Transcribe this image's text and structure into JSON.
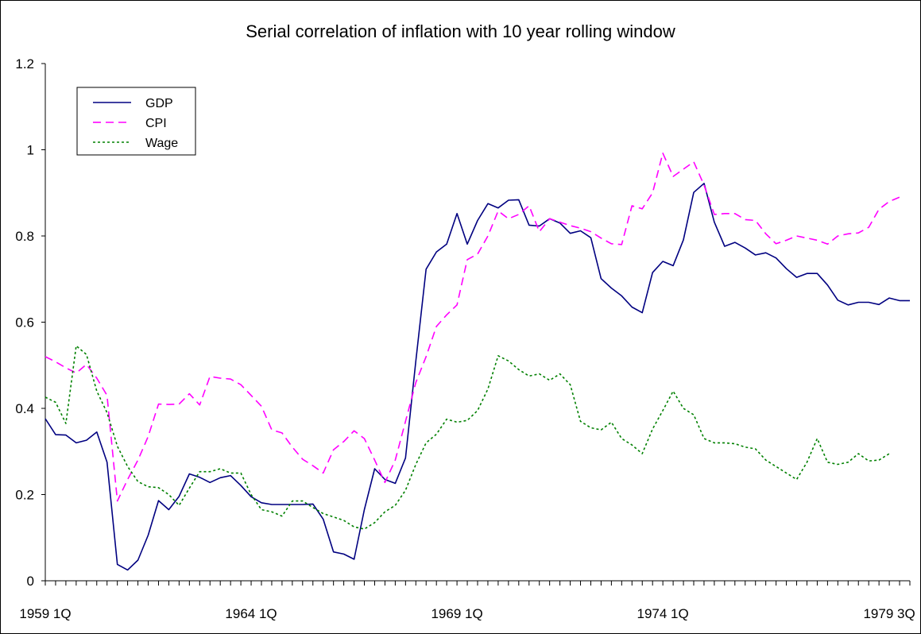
{
  "chart_data": {
    "type": "line",
    "title": "Serial correlation of inflation with 10 year rolling window",
    "xlabel": "",
    "ylabel": "",
    "ylim": [
      0,
      1.2
    ],
    "yticks": [
      "0",
      "0.2",
      "0.4",
      "0.6",
      "0.8",
      "1",
      "1.2"
    ],
    "xtick_labels": [
      "1959 1Q",
      "1964 1Q",
      "1969 1Q",
      "1974 1Q",
      "1979 3Q"
    ],
    "xtick_positions": [
      0,
      20,
      40,
      60,
      82
    ],
    "grid": false,
    "legend_position": "top-left",
    "series": [
      {
        "name": "GDP",
        "color": "#000080",
        "dash": "solid",
        "values": [
          0.376,
          0.339,
          0.338,
          0.32,
          0.326,
          0.345,
          0.275,
          0.038,
          0.025,
          0.048,
          0.106,
          0.186,
          0.165,
          0.196,
          0.248,
          0.24,
          0.228,
          0.239,
          0.244,
          0.221,
          0.195,
          0.181,
          0.177,
          0.177,
          0.177,
          0.177,
          0.178,
          0.143,
          0.067,
          0.062,
          0.05,
          0.165,
          0.26,
          0.235,
          0.226,
          0.285,
          0.51,
          0.723,
          0.763,
          0.781,
          0.852,
          0.781,
          0.836,
          0.875,
          0.865,
          0.883,
          0.884,
          0.825,
          0.823,
          0.84,
          0.83,
          0.806,
          0.812,
          0.796,
          0.701,
          0.679,
          0.661,
          0.635,
          0.622,
          0.715,
          0.741,
          0.731,
          0.791,
          0.901,
          0.922,
          0.832,
          0.776,
          0.785,
          0.772,
          0.756,
          0.761,
          0.749,
          0.724,
          0.704,
          0.713,
          0.713,
          0.686,
          0.651,
          0.64,
          0.646,
          0.646,
          0.641,
          0.656,
          0.65,
          0.65
        ]
      },
      {
        "name": "CPI",
        "color": "#ff00ff",
        "dash": "dashed",
        "values": [
          0.52,
          0.508,
          0.494,
          0.482,
          0.502,
          0.47,
          0.43,
          0.185,
          0.235,
          0.28,
          0.335,
          0.41,
          0.409,
          0.41,
          0.434,
          0.408,
          0.474,
          0.47,
          0.468,
          0.455,
          0.43,
          0.405,
          0.35,
          0.343,
          0.31,
          0.282,
          0.267,
          0.25,
          0.304,
          0.323,
          0.348,
          0.33,
          0.28,
          0.228,
          0.28,
          0.37,
          0.46,
          0.52,
          0.59,
          0.617,
          0.64,
          0.745,
          0.758,
          0.8,
          0.858,
          0.84,
          0.85,
          0.87,
          0.81,
          0.84,
          0.832,
          0.824,
          0.818,
          0.81,
          0.795,
          0.782,
          0.78,
          0.87,
          0.863,
          0.9,
          0.992,
          0.938,
          0.955,
          0.972,
          0.918,
          0.85,
          0.852,
          0.852,
          0.838,
          0.836,
          0.805,
          0.782,
          0.79,
          0.8,
          0.795,
          0.79,
          0.781,
          0.8,
          0.805,
          0.807,
          0.82,
          0.862,
          0.88,
          0.89
        ]
      },
      {
        "name": "Wage",
        "color": "#008000",
        "dash": "dotted",
        "values": [
          0.426,
          0.414,
          0.365,
          0.545,
          0.525,
          0.44,
          0.39,
          0.312,
          0.265,
          0.23,
          0.218,
          0.216,
          0.2,
          0.175,
          0.215,
          0.253,
          0.253,
          0.26,
          0.25,
          0.25,
          0.2,
          0.165,
          0.16,
          0.15,
          0.185,
          0.185,
          0.17,
          0.156,
          0.148,
          0.14,
          0.125,
          0.12,
          0.135,
          0.16,
          0.175,
          0.21,
          0.27,
          0.32,
          0.34,
          0.375,
          0.368,
          0.372,
          0.395,
          0.445,
          0.522,
          0.51,
          0.49,
          0.475,
          0.48,
          0.465,
          0.48,
          0.455,
          0.37,
          0.355,
          0.35,
          0.368,
          0.33,
          0.315,
          0.295,
          0.352,
          0.395,
          0.44,
          0.4,
          0.385,
          0.33,
          0.32,
          0.32,
          0.318,
          0.31,
          0.306,
          0.28,
          0.265,
          0.25,
          0.235,
          0.275,
          0.33,
          0.275,
          0.27,
          0.275,
          0.295,
          0.278,
          0.28,
          0.295
        ]
      }
    ]
  }
}
